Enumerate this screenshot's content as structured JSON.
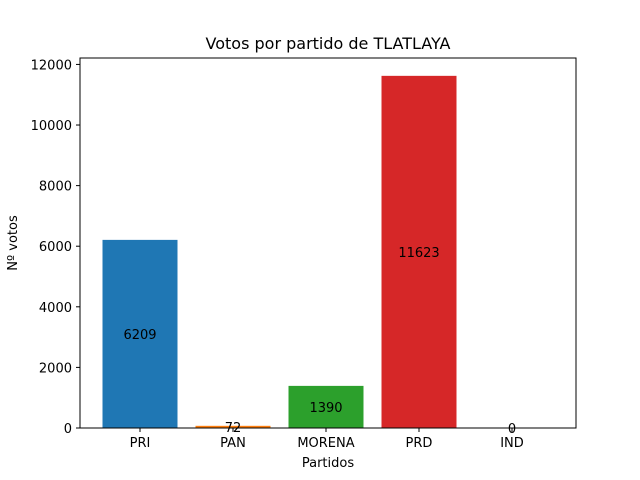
{
  "chart_data": {
    "type": "bar",
    "title": "Votos por partido de TLATLAYA",
    "xlabel": "Partidos",
    "ylabel": "Nº votos",
    "categories": [
      "PRI",
      "PAN",
      "MORENA",
      "PRD",
      "IND"
    ],
    "values": [
      6209,
      72,
      1390,
      11623,
      0
    ],
    "data_labels": [
      "6209",
      "72",
      "1390",
      "11623",
      "0"
    ],
    "colors": [
      "#1f77b4",
      "#ff7f0e",
      "#2ca02c",
      "#d62728",
      "#9467bd"
    ],
    "yticks": [
      0,
      2000,
      4000,
      6000,
      8000,
      10000,
      12000
    ],
    "ylim": [
      0,
      12000
    ],
    "grid": false,
    "legend": "none"
  }
}
